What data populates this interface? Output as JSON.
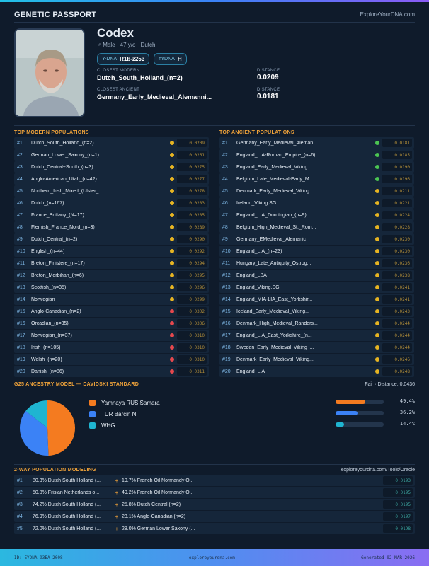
{
  "header": {
    "title": "GENETIC PASSPORT",
    "brand": "ExploreYourDNA.com"
  },
  "profile": {
    "name": "Codex",
    "meta": "♂ Male · 47 y/o · Dutch",
    "ydna_label": "Y-DNA",
    "ydna_value": "R1b-z253",
    "mtdna_label": "mtDNA",
    "mtdna_value": "H",
    "closest_modern_label": "CLOSEST MODERN",
    "closest_modern": "Dutch_South_Holland_(n=2)",
    "closest_ancient_label": "CLOSEST ANCIENT",
    "closest_ancient": "Germany_Early_Medieval_Alemanni...",
    "distance_label": "DISTANCE",
    "modern_distance": "0.0209",
    "ancient_distance": "0.0181"
  },
  "modern": {
    "title": "TOP MODERN POPULATIONS",
    "rows": [
      {
        "rank": "#1",
        "name": "Dutch_South_Holland_(n=2)",
        "dist": "0.0209",
        "color": "#e6b422"
      },
      {
        "rank": "#2",
        "name": "German_Lower_Saxony_(n=1)",
        "dist": "0.0261",
        "color": "#e6b422"
      },
      {
        "rank": "#3",
        "name": "Dutch_Central+South_(n=3)",
        "dist": "0.0275",
        "color": "#e6b422"
      },
      {
        "rank": "#4",
        "name": "Anglo-American_Utah_(n=42)",
        "dist": "0.0277",
        "color": "#e6b422"
      },
      {
        "rank": "#5",
        "name": "Northern_Irish_Mixed_(Ulster_...",
        "dist": "0.0278",
        "color": "#e6b422"
      },
      {
        "rank": "#6",
        "name": "Dutch_(n=167)",
        "dist": "0.0283",
        "color": "#e6b422"
      },
      {
        "rank": "#7",
        "name": "France_Brittany_(N=17)",
        "dist": "0.0285",
        "color": "#e6b422"
      },
      {
        "rank": "#8",
        "name": "Flemish_France_Nord_(n=3)",
        "dist": "0.0289",
        "color": "#e6b422"
      },
      {
        "rank": "#9",
        "name": "Dutch_Central_(n=2)",
        "dist": "0.0290",
        "color": "#e6b422"
      },
      {
        "rank": "#10",
        "name": "English_(n=44)",
        "dist": "0.0292",
        "color": "#e6b422"
      },
      {
        "rank": "#11",
        "name": "Breton_Finistere_(n=17)",
        "dist": "0.0294",
        "color": "#e6b422"
      },
      {
        "rank": "#12",
        "name": "Breton_Morbihan_(n=6)",
        "dist": "0.0295",
        "color": "#e6b422"
      },
      {
        "rank": "#13",
        "name": "Scottish_(n=35)",
        "dist": "0.0296",
        "color": "#e6b422"
      },
      {
        "rank": "#14",
        "name": "Norwegian",
        "dist": "0.0299",
        "color": "#e6b422"
      },
      {
        "rank": "#15",
        "name": "Anglo-Canadian_(n=2)",
        "dist": "0.0302",
        "color": "#e5484d"
      },
      {
        "rank": "#16",
        "name": "Orcadian_(n=35)",
        "dist": "0.0306",
        "color": "#e5484d"
      },
      {
        "rank": "#17",
        "name": "Norwegian_(n=37)",
        "dist": "0.0310",
        "color": "#e5484d"
      },
      {
        "rank": "#18",
        "name": "Irish_(n=105)",
        "dist": "0.0310",
        "color": "#e5484d"
      },
      {
        "rank": "#19",
        "name": "Welsh_(n=20)",
        "dist": "0.0310",
        "color": "#e5484d"
      },
      {
        "rank": "#20",
        "name": "Danish_(n=86)",
        "dist": "0.0311",
        "color": "#e5484d"
      }
    ]
  },
  "ancient": {
    "title": "TOP ANCIENT POPULATIONS",
    "rows": [
      {
        "rank": "#1",
        "name": "Germany_Early_Medieval_Aleman...",
        "dist": "0.0181",
        "color": "#4cc552"
      },
      {
        "rank": "#2",
        "name": "England_LIA-Roman_Empire_(n=6)",
        "dist": "0.0185",
        "color": "#4cc552"
      },
      {
        "rank": "#3",
        "name": "England_Early_Medieval_Viking...",
        "dist": "0.0190",
        "color": "#4cc552"
      },
      {
        "rank": "#4",
        "name": "Belgium_Late_Medieval-Early_M...",
        "dist": "0.0196",
        "color": "#4cc552"
      },
      {
        "rank": "#5",
        "name": "Denmark_Early_Medieval_Viking...",
        "dist": "0.0211",
        "color": "#e6b422"
      },
      {
        "rank": "#6",
        "name": "Ireland_Viking.SG",
        "dist": "0.0221",
        "color": "#e6b422"
      },
      {
        "rank": "#7",
        "name": "England_LIA_Durotrigian_(n=9)",
        "dist": "0.0224",
        "color": "#e6b422"
      },
      {
        "rank": "#8",
        "name": "Belgium_High_Medieval_St._Rom...",
        "dist": "0.0228",
        "color": "#e6b422"
      },
      {
        "rank": "#9",
        "name": "Germany_EMedieval_Alemanic",
        "dist": "0.0230",
        "color": "#e6b422"
      },
      {
        "rank": "#10",
        "name": "England_LIA_(n=23)",
        "dist": "0.0230",
        "color": "#e6b422"
      },
      {
        "rank": "#11",
        "name": "Hungary_Late_Antiquity_Ostrog...",
        "dist": "0.0236",
        "color": "#e6b422"
      },
      {
        "rank": "#12",
        "name": "England_LBA",
        "dist": "0.0238",
        "color": "#e6b422"
      },
      {
        "rank": "#13",
        "name": "England_Viking.SG",
        "dist": "0.0241",
        "color": "#e6b422"
      },
      {
        "rank": "#14",
        "name": "England_MIA-LIA_East_Yorkshir...",
        "dist": "0.0241",
        "color": "#e6b422"
      },
      {
        "rank": "#15",
        "name": "Iceland_Early_Medieval_Viking...",
        "dist": "0.0243",
        "color": "#e6b422"
      },
      {
        "rank": "#16",
        "name": "Denmark_High_Medieval_Randers...",
        "dist": "0.0244",
        "color": "#e6b422"
      },
      {
        "rank": "#17",
        "name": "England_LIA_East_Yorkshire_(n...",
        "dist": "0.0244",
        "color": "#e6b422"
      },
      {
        "rank": "#18",
        "name": "Sweden_Early_Medieval_Viking_...",
        "dist": "0.0244",
        "color": "#e6b422"
      },
      {
        "rank": "#19",
        "name": "Denmark_Early_Medieval_Viking...",
        "dist": "0.0246",
        "color": "#e6b422"
      },
      {
        "rank": "#20",
        "name": "England_LIA",
        "dist": "0.0248",
        "color": "#e6b422"
      }
    ]
  },
  "g25": {
    "title": "G25 ANCESTRY MODEL — DAVIDSKI STANDARD",
    "fit": "Fair · Distance: 0.0436"
  },
  "chart_data": {
    "type": "pie",
    "categories": [
      "Yamnaya RUS Samara",
      "TUR Barcin N",
      "WHG"
    ],
    "values": [
      49.4,
      36.2,
      14.4
    ],
    "labels": [
      "49.4%",
      "36.2%",
      "14.4%"
    ],
    "colors": [
      "#f47b20",
      "#3b82f6",
      "#1fb5d1"
    ]
  },
  "twoway": {
    "title": "2-WAY POPULATION MODELING",
    "source": "exploreyourdna.com/Tools/Oracle",
    "rows": [
      {
        "rank": "#1",
        "a": "80.3% Dutch South Holland (...",
        "b": "19.7% French Oil Normandy O...",
        "fit": "0.0193"
      },
      {
        "rank": "#2",
        "a": "50.8% Frisian Netherlands o...",
        "b": "49.2% French Oil Normandy O...",
        "fit": "0.0195"
      },
      {
        "rank": "#3",
        "a": "74.2% Dutch South Holland (...",
        "b": "25.8% Dutch Central (n=2)",
        "fit": "0.0195"
      },
      {
        "rank": "#4",
        "a": "76.9% Dutch South Holland (...",
        "b": "23.1% Anglo-Canadian (n=2)",
        "fit": "0.0197"
      },
      {
        "rank": "#5",
        "a": "72.0% Dutch South Holland (...",
        "b": "28.0% German Lower Saxony (...",
        "fit": "0.0198"
      }
    ]
  },
  "footer": {
    "id": "ID: EYDNA-93EA-2008",
    "site": "exploreyourdna.com",
    "generated": "Generated 02 MAR 2026"
  }
}
